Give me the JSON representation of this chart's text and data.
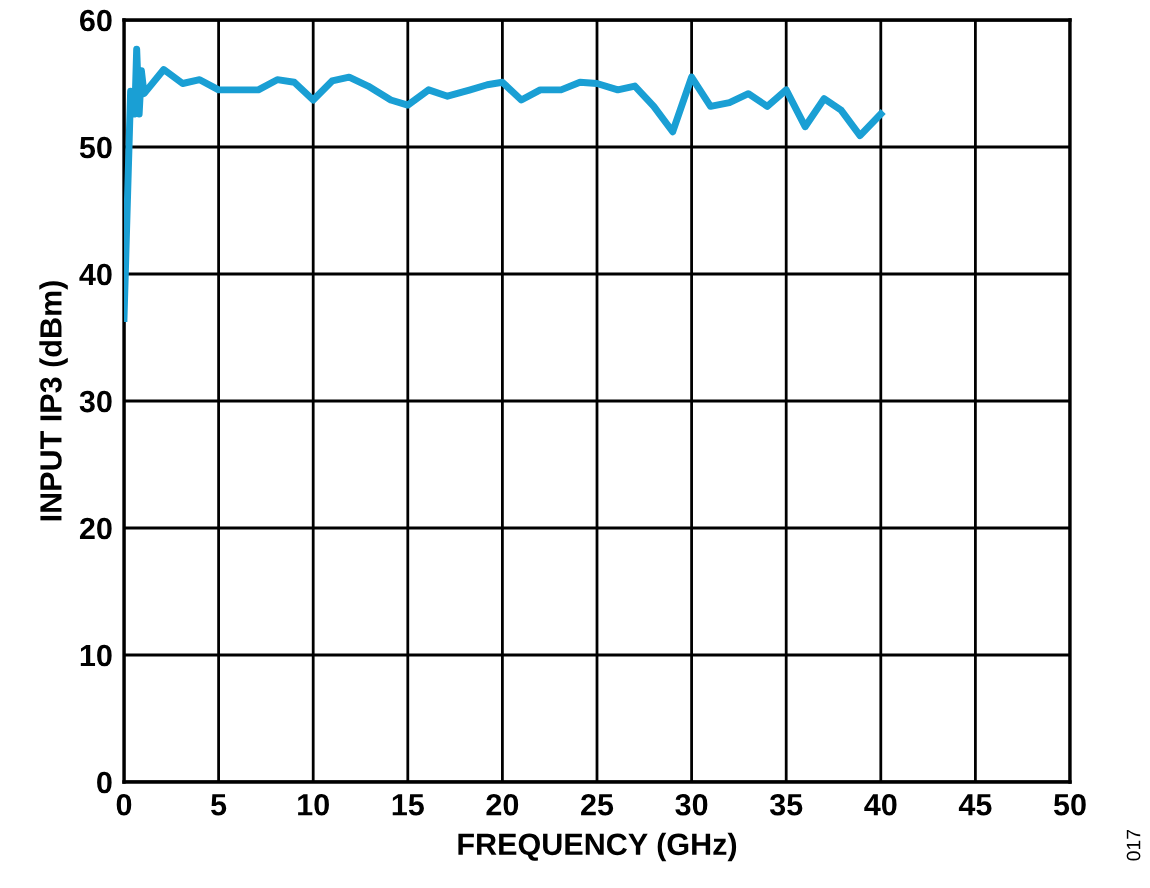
{
  "chart_data": {
    "type": "line",
    "xlabel": "FREQUENCY (GHz)",
    "ylabel": "INPUT IP3 (dBm)",
    "xlim": [
      0,
      50
    ],
    "ylim": [
      0,
      60
    ],
    "xticks": [
      0,
      5,
      10,
      15,
      20,
      25,
      30,
      35,
      40,
      45,
      50
    ],
    "yticks": [
      0,
      10,
      20,
      30,
      40,
      50,
      60
    ],
    "grid": true,
    "marker": "none",
    "line_style": "solid",
    "annotations": [
      "017"
    ],
    "series": [
      {
        "color": "#1a9fd4",
        "x": [
          0,
          0.35,
          0.57,
          0.67,
          0.8,
          0.92,
          1.06,
          2.1,
          3.1,
          4.0,
          5.0,
          7.1,
          8.1,
          9.0,
          10,
          11,
          11.9,
          12.9,
          14.1,
          15,
          16.1,
          17.1,
          18.3,
          19.2,
          20,
          21,
          22,
          23.1,
          24.1,
          25,
          26.1,
          27,
          28,
          29,
          30,
          31,
          32,
          33,
          34,
          35,
          36,
          37,
          37.9,
          38.9,
          40
        ],
        "values": [
          36.5,
          54.4,
          52.6,
          57.7,
          52.6,
          56,
          54.2,
          56.1,
          55,
          55.3,
          54.5,
          54.5,
          55.3,
          55.1,
          53.7,
          55.2,
          55.5,
          54.8,
          53.7,
          53.3,
          54.5,
          54,
          54.5,
          54.9,
          55.1,
          53.7,
          54.5,
          54.5,
          55.1,
          55,
          54.5,
          54.8,
          53.2,
          51.2,
          55.5,
          53.2,
          53.5,
          54.2,
          53.2,
          54.5,
          51.6,
          53.8,
          52.9,
          50.9,
          52.6
        ]
      }
    ]
  }
}
